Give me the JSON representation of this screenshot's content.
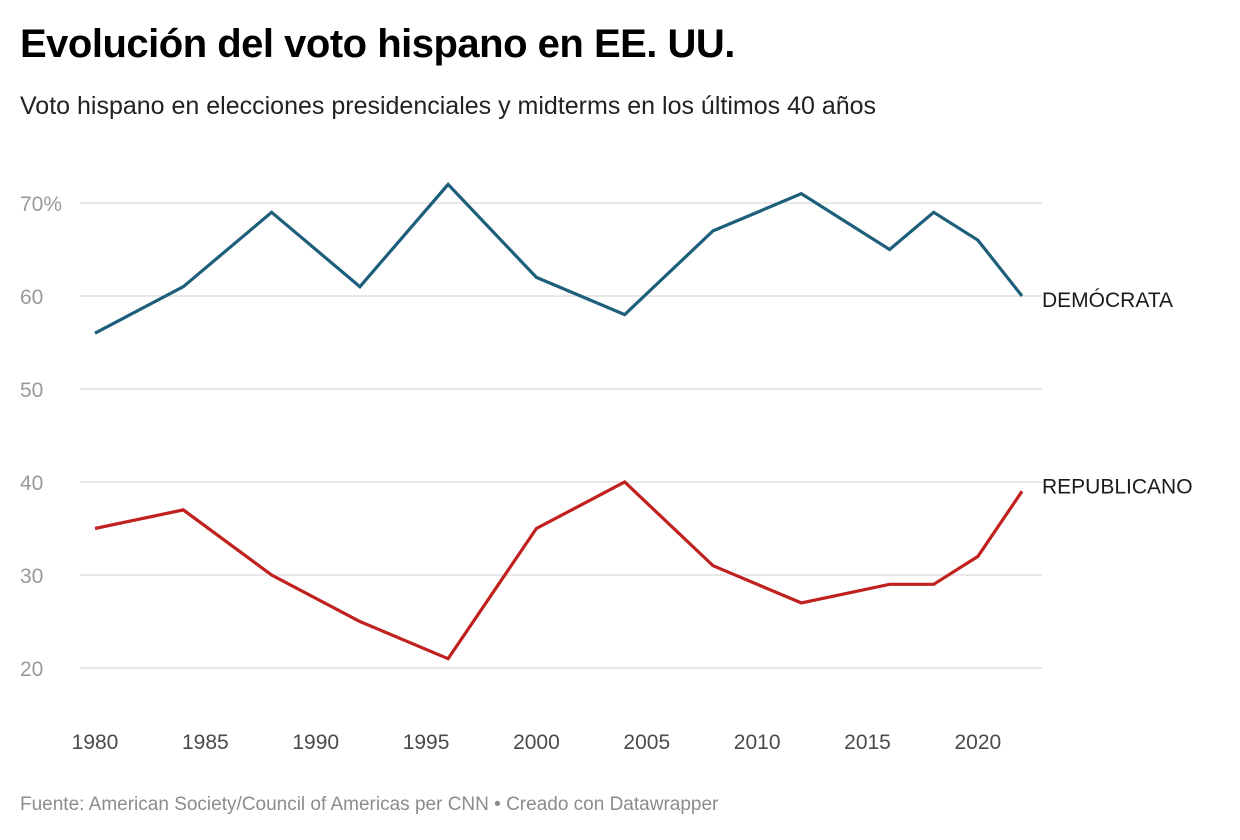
{
  "title": "Evolución del voto hispano en EE. UU.",
  "subtitle": "Voto hispano en elecciones presidenciales y midterms en los últimos 40 años",
  "footer": {
    "source": "Fuente: American Society/Council of Americas per CNN",
    "separator": " • ",
    "credit": "Creado con Datawrapper"
  },
  "chart_data": {
    "type": "line",
    "title": "Evolución del voto hispano en EE. UU.",
    "subtitle": "Voto hispano en elecciones presidenciales y midterms en los últimos 40 años",
    "xlabel": "",
    "ylabel": "",
    "xlim": [
      1980,
      2022
    ],
    "ylim": [
      20,
      70
    ],
    "y_ticks": [
      20,
      30,
      40,
      50,
      60,
      70
    ],
    "y_tick_labels": [
      "20",
      "30",
      "40",
      "50",
      "60",
      "70%"
    ],
    "x_ticks": [
      1980,
      1985,
      1990,
      1995,
      2000,
      2005,
      2010,
      2015,
      2020
    ],
    "x_tick_labels": [
      "1980",
      "1985",
      "1990",
      "1995",
      "2000",
      "2005",
      "2010",
      "2015",
      "2020"
    ],
    "grid": "horizontal",
    "legend": "direct labels at line ends",
    "series": [
      {
        "name": "DEMÓCRATA",
        "color": "#1d5f7b",
        "x": [
          1980,
          1984,
          1988,
          1992,
          1996,
          2000,
          2004,
          2008,
          2012,
          2016,
          2018,
          2020,
          2022
        ],
        "values": [
          56,
          61,
          69,
          61,
          72,
          62,
          58,
          67,
          71,
          65,
          69,
          66,
          60
        ]
      },
      {
        "name": "REPUBLICANO",
        "color": "#c0211f",
        "x": [
          1980,
          1984,
          1988,
          1992,
          1996,
          2000,
          2004,
          2008,
          2012,
          2016,
          2018,
          2020,
          2022
        ],
        "values": [
          35,
          37,
          30,
          25,
          21,
          35,
          40,
          31,
          27,
          29,
          29,
          32,
          39
        ]
      }
    ]
  }
}
